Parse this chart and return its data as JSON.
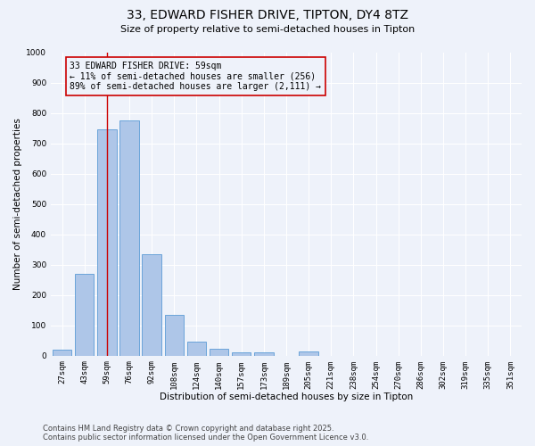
{
  "title_line1": "33, EDWARD FISHER DRIVE, TIPTON, DY4 8TZ",
  "title_line2": "Size of property relative to semi-detached houses in Tipton",
  "xlabel": "Distribution of semi-detached houses by size in Tipton",
  "ylabel": "Number of semi-detached properties",
  "categories": [
    "27sqm",
    "43sqm",
    "59sqm",
    "76sqm",
    "92sqm",
    "108sqm",
    "124sqm",
    "140sqm",
    "157sqm",
    "173sqm",
    "189sqm",
    "205sqm",
    "221sqm",
    "238sqm",
    "254sqm",
    "270sqm",
    "286sqm",
    "302sqm",
    "319sqm",
    "335sqm",
    "351sqm"
  ],
  "values": [
    20,
    270,
    745,
    775,
    335,
    135,
    45,
    22,
    12,
    10,
    0,
    15,
    0,
    0,
    0,
    0,
    0,
    0,
    0,
    0,
    0
  ],
  "bar_color": "#aec6e8",
  "bar_edge_color": "#5b9bd5",
  "vline_x_index": 2,
  "vline_color": "#cc0000",
  "annotation_box_text": "33 EDWARD FISHER DRIVE: 59sqm\n← 11% of semi-detached houses are smaller (256)\n89% of semi-detached houses are larger (2,111) →",
  "ylim": [
    0,
    1000
  ],
  "yticks": [
    0,
    100,
    200,
    300,
    400,
    500,
    600,
    700,
    800,
    900,
    1000
  ],
  "bg_color": "#eef2fa",
  "grid_color": "#ffffff",
  "footer_line1": "Contains HM Land Registry data © Crown copyright and database right 2025.",
  "footer_line2": "Contains public sector information licensed under the Open Government Licence v3.0.",
  "title_fontsize": 10,
  "subtitle_fontsize": 8,
  "axis_label_fontsize": 7.5,
  "tick_fontsize": 6.5,
  "annotation_fontsize": 7,
  "footer_fontsize": 6
}
